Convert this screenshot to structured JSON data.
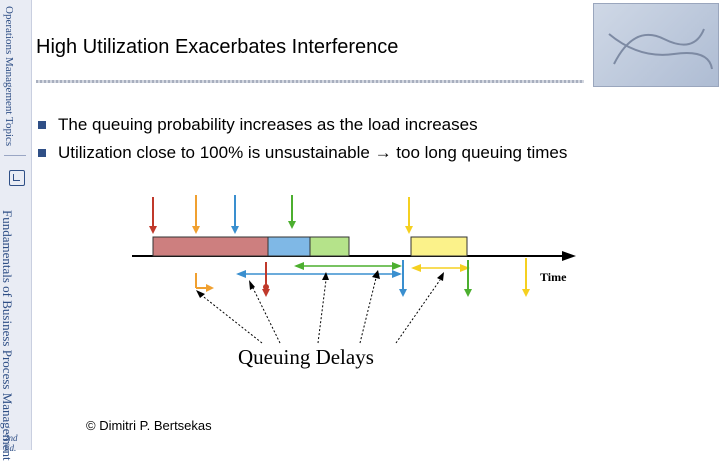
{
  "sidebar": {
    "top_text": "Operations Management Topics",
    "book_text": "Fundamentals of Business Process Management",
    "edition": "2nd Ed."
  },
  "slide": {
    "title": "High Utilization Exacerbates Interference",
    "bullets": [
      "The queuing probability increases as the load increases",
      "Utilization close to 100% is unsustainable → too long queuing times"
    ],
    "copyright": "© Dimitri P. Bertsekas"
  },
  "diagram": {
    "time_label": "Time",
    "delays_label": "Queuing Delays",
    "colors": {
      "red": "#c0392b",
      "orange": "#f0a030",
      "blue": "#3a8fcf",
      "green": "#4caf2f",
      "yellow": "#f5e23a",
      "bar_red": "#cd7f7f",
      "bar_blue": "#7fb8e6",
      "bar_green": "#b5e38a",
      "bar_yellow": "#fbf28a"
    }
  }
}
